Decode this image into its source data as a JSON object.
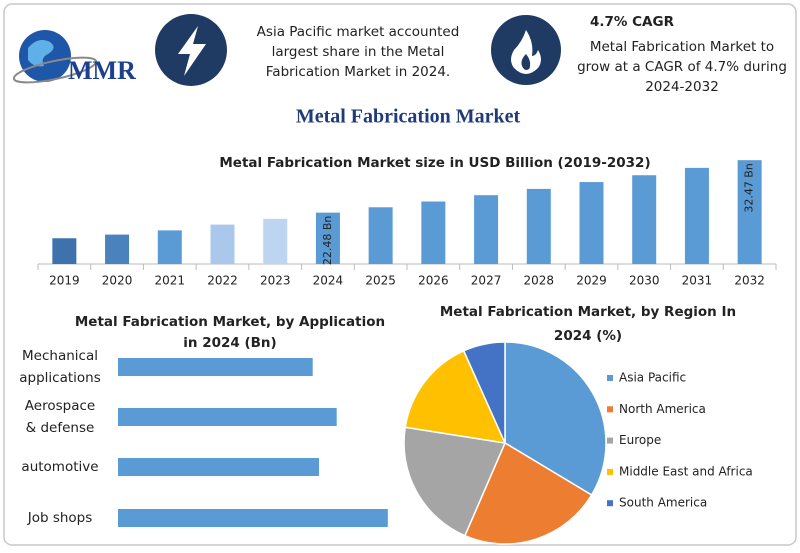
{
  "header": {
    "logo": "MMR",
    "info_left": [
      "Asia Pacific market accounted",
      "largest share in the Metal",
      "Fabrication Market in 2024."
    ],
    "cagr_title": "4.7% CAGR",
    "info_right": [
      "Metal Fabrication Market to",
      "grow at a CAGR of 4.7% during",
      "2024-2032"
    ]
  },
  "title": "Metal Fabrication Market",
  "chart_data": [
    {
      "type": "bar",
      "title": "Metal Fabrication Market size in USD Billion (2019-2032)",
      "categories": [
        "2019",
        "2020",
        "2021",
        "2022",
        "2023",
        "2024",
        "2025",
        "2026",
        "2027",
        "2028",
        "2029",
        "2030",
        "2031",
        "2032"
      ],
      "values": [
        17.6,
        18.3,
        19.1,
        20.2,
        21.3,
        22.48,
        23.5,
        24.6,
        25.8,
        27.0,
        28.3,
        29.6,
        31.0,
        32.47
      ],
      "value_labels": [
        null,
        null,
        null,
        null,
        null,
        "22.48 Bn",
        null,
        null,
        null,
        null,
        null,
        null,
        null,
        "32.47 Bn"
      ],
      "colors": [
        "#3d72ad",
        "#4a82bd",
        "#5b9bd5",
        "#a9c8ec",
        "#bdd5f0",
        "#5b9bd5",
        "#5b9bd5",
        "#5b9bd5",
        "#5b9bd5",
        "#5b9bd5",
        "#5b9bd5",
        "#5b9bd5",
        "#5b9bd5",
        "#5b9bd5"
      ],
      "ylim": [
        12.7,
        32.5
      ]
    },
    {
      "type": "hbar",
      "title": [
        "Metal Fabrication Market, by Application",
        "in 2024 (Bn)"
      ],
      "categories": [
        [
          "Mechanical",
          "applications"
        ],
        [
          "Aerospace",
          "& defense"
        ],
        [
          "automotive"
        ],
        [
          "Job shops"
        ]
      ],
      "values": [
        4.95,
        5.56,
        5.11,
        6.86
      ],
      "color": "#5b9bd5",
      "xlim": [
        0,
        7.5
      ]
    },
    {
      "type": "pie",
      "title": [
        "Metal Fabrication Market, by Region In",
        "2024 (%)"
      ],
      "categories": [
        "Asia Pacific",
        "North America",
        "Europe",
        "Middle East and Africa",
        "South America"
      ],
      "values": [
        33.6,
        22.9,
        21.0,
        15.8,
        6.7
      ],
      "colors": [
        "#5b9bd5",
        "#ed7d31",
        "#a5a5a5",
        "#ffc000",
        "#4472c4"
      ],
      "legend": "right"
    }
  ]
}
